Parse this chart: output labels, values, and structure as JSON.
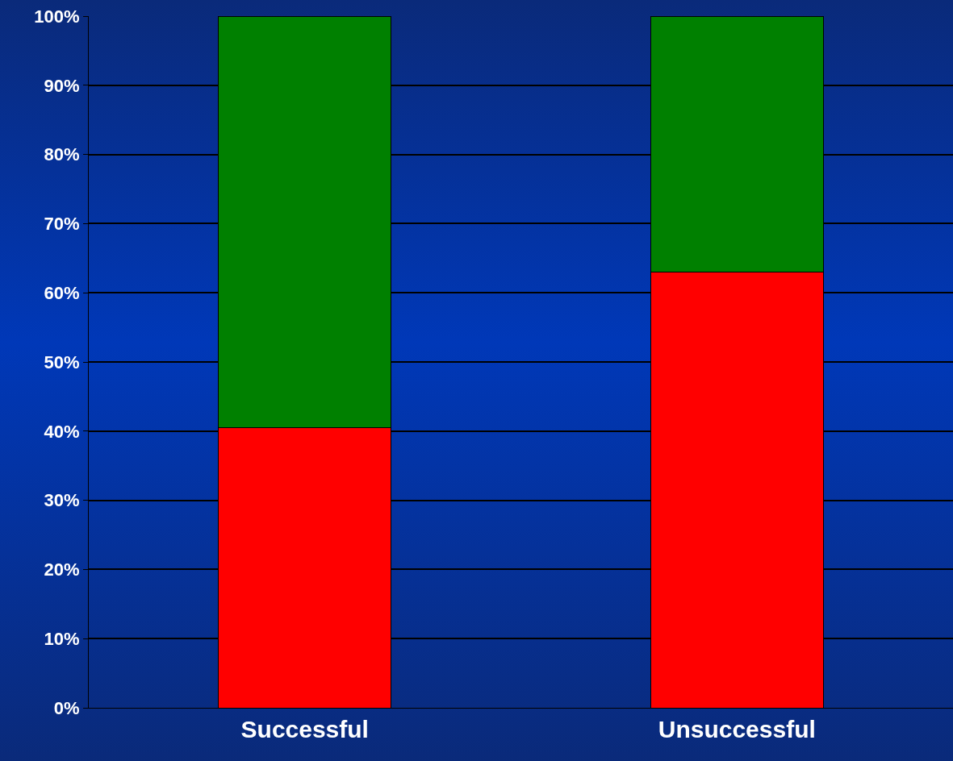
{
  "chart_data": {
    "type": "bar",
    "stacked": true,
    "categories": [
      "Successful",
      "Unsuccessful"
    ],
    "series": [
      {
        "color": "#ff0000",
        "values": [
          40.5,
          63
        ]
      },
      {
        "color": "#008000",
        "values": [
          59.5,
          37
        ]
      }
    ],
    "ylim": [
      0,
      100
    ],
    "yticks": [
      {
        "value": 0,
        "label": "0%"
      },
      {
        "value": 10,
        "label": "10%"
      },
      {
        "value": 20,
        "label": "20%"
      },
      {
        "value": 30,
        "label": "30%"
      },
      {
        "value": 40,
        "label": "40%"
      },
      {
        "value": 50,
        "label": "50%"
      },
      {
        "value": 60,
        "label": "60%"
      },
      {
        "value": 70,
        "label": "70%"
      },
      {
        "value": 80,
        "label": "80%"
      },
      {
        "value": 90,
        "label": "90%"
      },
      {
        "value": 100,
        "label": "100%"
      }
    ],
    "grid": "y"
  }
}
